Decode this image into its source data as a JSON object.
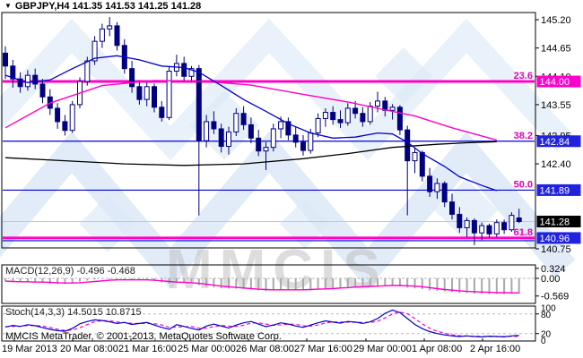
{
  "header": {
    "symbol_line": "GBPJPY,H4  141.35 141.53 141.25 141.28",
    "dropdown_icon": "triangle-down"
  },
  "footer": {
    "copyright": "MMCIS MetaTrader, © 2001-2013, MetaQuotes Software Corp."
  },
  "watermark": {
    "text": "MMCIS"
  },
  "colors": {
    "bear_candle": "#000080",
    "bull_candle": "#ffffff",
    "candle_outline": "#000080",
    "ma_fast": "#0000cc",
    "ma_mid": "#ff00c8",
    "ma_slow": "#000000",
    "level_blue": "#0000d8",
    "level_magenta": "#ff00c8",
    "badge_blue": "#2121e0",
    "badge_magenta": "#ff00c8",
    "badge_black": "#000000",
    "current_price_line": "#c8c8c8",
    "macd_histogram": "#aaaaaa",
    "macd_signal": "#ff00c8",
    "stoch_k": "#0000cc",
    "stoch_d": "#ff00c8",
    "grid_dash": "#bbbbbb",
    "watermark_blue": "#dce9f7",
    "watermark_gray": "#bdbdbd"
  },
  "price_axis": {
    "ticks": [
      {
        "label": "145.20",
        "value": 145.2
      },
      {
        "label": "144.65",
        "value": 144.65
      },
      {
        "label": "144.10",
        "value": 144.1
      },
      {
        "label": "143.55",
        "value": 143.55
      },
      {
        "label": "142.95",
        "value": 142.95
      },
      {
        "label": "142.40",
        "value": 142.4
      },
      {
        "label": "140.75",
        "value": 140.75
      }
    ]
  },
  "time_axis": {
    "labels": [
      "19 Mar 2013",
      "20 Mar 08:00",
      "21 Mar 16:00",
      "25 Mar 00:00",
      "26 Mar 08:00",
      "27 Mar 16:00",
      "29 Mar 00:00",
      "1 Apr 08:00",
      "2 Apr 16:00"
    ]
  },
  "macd_panel": {
    "label": "MACD(12,26,9) -0.496 -0.468",
    "ticks": [
      {
        "label": "0.324",
        "value": 0.324
      },
      {
        "label": "0.00",
        "value": 0.0
      },
      {
        "label": "-0.569",
        "value": -0.569
      }
    ]
  },
  "stoch_panel": {
    "label": "Stoch(14,3,3) 14.5015 10.8715",
    "ticks": [
      {
        "label": "100",
        "value": 100
      },
      {
        "label": "80",
        "value": 80
      },
      {
        "label": "20",
        "value": 20
      },
      {
        "label": "0",
        "value": 0
      }
    ]
  },
  "chart_data": {
    "type": "candlestick",
    "symbol": "GBPJPY",
    "timeframe": "H4",
    "last_ohlc": {
      "open": 141.35,
      "high": 141.53,
      "low": 141.25,
      "close": 141.28
    },
    "levels": [
      {
        "fib": "23.6",
        "label": "144.00",
        "value": 144.0,
        "badge": "#ff00c8",
        "line_color": "#ff00c8",
        "thick": true,
        "extra_blue": false
      },
      {
        "fib": "38.2",
        "label": "142.84",
        "value": 142.84,
        "badge": "#2121e0",
        "line_color": "#0000d8",
        "thick": false,
        "extra_blue": false
      },
      {
        "fib": "50.0",
        "label": "141.89",
        "value": 141.89,
        "badge": "#2121e0",
        "line_color": "#0000d8",
        "thick": false,
        "extra_blue": false
      },
      {
        "fib": "61.8",
        "label": "140.96",
        "value": 140.96,
        "badge": "#2121e0",
        "line_color": "#ff00c8",
        "thick": true,
        "extra_blue": true
      }
    ],
    "current_price": {
      "label": "141.28",
      "value": 141.28,
      "badge": "#000000",
      "line_color": "#c8c8c8"
    },
    "candles": [
      [
        144.55,
        144.68,
        144.05,
        144.3
      ],
      [
        144.3,
        144.42,
        143.88,
        144.05
      ],
      [
        144.05,
        144.18,
        143.78,
        143.9
      ],
      [
        143.9,
        144.22,
        143.82,
        144.12
      ],
      [
        144.12,
        144.25,
        143.85,
        143.95
      ],
      [
        143.95,
        144.05,
        143.58,
        143.7
      ],
      [
        143.7,
        143.85,
        143.35,
        143.48
      ],
      [
        143.48,
        143.58,
        143.08,
        143.22
      ],
      [
        143.22,
        143.35,
        142.95,
        143.05
      ],
      [
        143.05,
        143.62,
        143.0,
        143.55
      ],
      [
        143.55,
        144.08,
        143.48,
        144.0
      ],
      [
        144.0,
        144.48,
        143.92,
        144.4
      ],
      [
        144.4,
        144.88,
        144.32,
        144.78
      ],
      [
        144.78,
        145.12,
        144.65,
        145.02
      ],
      [
        145.02,
        145.25,
        144.88,
        145.08
      ],
      [
        145.08,
        145.15,
        144.6,
        144.7
      ],
      [
        144.7,
        144.82,
        144.15,
        144.25
      ],
      [
        144.25,
        144.4,
        143.78,
        143.9
      ],
      [
        143.9,
        144.02,
        143.55,
        143.65
      ],
      [
        143.65,
        143.98,
        143.52,
        143.9
      ],
      [
        143.9,
        143.96,
        143.4,
        143.5
      ],
      [
        143.5,
        143.62,
        143.22,
        143.3
      ],
      [
        143.3,
        144.28,
        143.25,
        144.2
      ],
      [
        144.2,
        144.52,
        144.1,
        144.35
      ],
      [
        144.35,
        144.48,
        144.0,
        144.1
      ],
      [
        144.1,
        144.3,
        143.98,
        144.25
      ],
      [
        144.25,
        144.32,
        141.4,
        142.85
      ],
      [
        142.85,
        143.35,
        142.72,
        143.22
      ],
      [
        143.22,
        143.42,
        142.98,
        143.08
      ],
      [
        143.08,
        143.18,
        142.62,
        142.74
      ],
      [
        142.74,
        143.12,
        142.58,
        143.02
      ],
      [
        143.02,
        143.48,
        142.94,
        143.38
      ],
      [
        143.38,
        143.52,
        143.06,
        143.16
      ],
      [
        143.16,
        143.3,
        142.8,
        142.9
      ],
      [
        142.9,
        143.06,
        142.55,
        142.65
      ],
      [
        142.65,
        142.82,
        142.28,
        142.72
      ],
      [
        142.72,
        143.18,
        142.64,
        143.08
      ],
      [
        143.08,
        143.32,
        142.9,
        143.22
      ],
      [
        143.22,
        143.3,
        142.86,
        142.96
      ],
      [
        142.96,
        143.12,
        142.72,
        142.82
      ],
      [
        142.82,
        142.96,
        142.56,
        142.66
      ],
      [
        142.66,
        143.08,
        142.6,
        143.0
      ],
      [
        143.0,
        143.38,
        142.92,
        143.28
      ],
      [
        143.28,
        143.48,
        143.12,
        143.4
      ],
      [
        143.4,
        143.52,
        143.16,
        143.26
      ],
      [
        143.26,
        143.44,
        143.1,
        143.2
      ],
      [
        143.2,
        143.58,
        143.14,
        143.48
      ],
      [
        143.48,
        143.62,
        143.28,
        143.38
      ],
      [
        143.38,
        143.5,
        143.12,
        143.22
      ],
      [
        143.22,
        143.6,
        143.16,
        143.52
      ],
      [
        143.52,
        143.8,
        143.4,
        143.62
      ],
      [
        143.62,
        143.7,
        143.32,
        143.44
      ],
      [
        143.44,
        143.56,
        143.26,
        143.5
      ],
      [
        143.5,
        143.54,
        142.96,
        143.06
      ],
      [
        143.06,
        143.14,
        141.4,
        142.46
      ],
      [
        142.46,
        142.72,
        142.22,
        142.62
      ],
      [
        142.62,
        142.66,
        142.06,
        142.16
      ],
      [
        142.16,
        142.32,
        141.76,
        141.86
      ],
      [
        141.86,
        142.12,
        141.72,
        142.02
      ],
      [
        142.02,
        142.06,
        141.56,
        141.66
      ],
      [
        141.66,
        141.82,
        141.32,
        141.42
      ],
      [
        141.42,
        141.56,
        141.06,
        141.16
      ],
      [
        141.16,
        141.36,
        140.98,
        141.3
      ],
      [
        141.3,
        141.34,
        140.82,
        141.06
      ],
      [
        141.06,
        141.26,
        140.92,
        141.2
      ],
      [
        141.2,
        141.24,
        140.96,
        141.04
      ],
      [
        141.04,
        141.32,
        140.98,
        141.26
      ],
      [
        141.26,
        141.32,
        141.04,
        141.12
      ],
      [
        141.12,
        141.46,
        141.08,
        141.4
      ],
      [
        141.35,
        141.53,
        141.25,
        141.28
      ]
    ],
    "ma_fast": [
      [
        0,
        144.12
      ],
      [
        3,
        143.98
      ],
      [
        6,
        144.03
      ],
      [
        9,
        144.25
      ],
      [
        12,
        144.45
      ],
      [
        15,
        144.5
      ],
      [
        18,
        144.42
      ],
      [
        21,
        144.3
      ],
      [
        24,
        144.27
      ],
      [
        26,
        144.18
      ],
      [
        29,
        143.92
      ],
      [
        32,
        143.65
      ],
      [
        35,
        143.42
      ],
      [
        38,
        143.18
      ],
      [
        41,
        143.0
      ],
      [
        44,
        142.9
      ],
      [
        47,
        142.92
      ],
      [
        50,
        143.0
      ],
      [
        52,
        142.98
      ],
      [
        54,
        142.82
      ],
      [
        56,
        142.6
      ],
      [
        59,
        142.35
      ],
      [
        61,
        142.15
      ],
      [
        64,
        141.98
      ],
      [
        66,
        141.88
      ]
    ],
    "ma_mid": [
      [
        0,
        143.1
      ],
      [
        6,
        143.58
      ],
      [
        13,
        143.92
      ],
      [
        20,
        144.02
      ],
      [
        27,
        144.0
      ],
      [
        33,
        143.93
      ],
      [
        40,
        143.75
      ],
      [
        46,
        143.6
      ],
      [
        50,
        143.48
      ],
      [
        55,
        143.33
      ],
      [
        60,
        143.1
      ],
      [
        63,
        142.98
      ],
      [
        66,
        142.86
      ]
    ],
    "ma_slow": [
      [
        0,
        142.52
      ],
      [
        8,
        142.46
      ],
      [
        16,
        142.4
      ],
      [
        24,
        142.37
      ],
      [
        32,
        142.4
      ],
      [
        40,
        142.5
      ],
      [
        46,
        142.6
      ],
      [
        52,
        142.72
      ],
      [
        58,
        142.78
      ],
      [
        62,
        142.81
      ],
      [
        66,
        142.83
      ]
    ],
    "macd": {
      "histogram": [
        -0.1,
        -0.12,
        -0.13,
        -0.12,
        -0.13,
        -0.15,
        -0.17,
        -0.18,
        -0.18,
        -0.15,
        -0.11,
        -0.07,
        -0.04,
        -0.02,
        -0.02,
        -0.04,
        -0.03,
        -0.06,
        -0.05,
        -0.04,
        -0.08,
        -0.13,
        -0.17,
        -0.14,
        -0.12,
        -0.12,
        -0.22,
        -0.26,
        -0.29,
        -0.32,
        -0.33,
        -0.33,
        -0.34,
        -0.36,
        -0.39,
        -0.41,
        -0.39,
        -0.37,
        -0.37,
        -0.38,
        -0.39,
        -0.38,
        -0.36,
        -0.34,
        -0.33,
        -0.33,
        -0.31,
        -0.29,
        -0.28,
        -0.26,
        -0.24,
        -0.24,
        -0.23,
        -0.26,
        -0.3,
        -0.32,
        -0.35,
        -0.39,
        -0.4,
        -0.42,
        -0.44,
        -0.47,
        -0.47,
        -0.49,
        -0.5,
        -0.51,
        -0.5,
        -0.51,
        -0.5,
        -0.496
      ],
      "signal": [
        -0.09,
        -0.1,
        -0.11,
        -0.11,
        -0.12,
        -0.12,
        -0.13,
        -0.14,
        -0.15,
        -0.15,
        -0.14,
        -0.12,
        -0.1,
        -0.08,
        -0.06,
        -0.05,
        -0.05,
        -0.05,
        -0.05,
        -0.05,
        -0.06,
        -0.08,
        -0.1,
        -0.12,
        -0.13,
        -0.14,
        -0.16,
        -0.19,
        -0.22,
        -0.25,
        -0.27,
        -0.29,
        -0.31,
        -0.33,
        -0.35,
        -0.36,
        -0.37,
        -0.37,
        -0.37,
        -0.37,
        -0.37,
        -0.36,
        -0.35,
        -0.34,
        -0.33,
        -0.31,
        -0.3,
        -0.28,
        -0.27,
        -0.26,
        -0.25,
        -0.24,
        -0.23,
        -0.23,
        -0.24,
        -0.25,
        -0.27,
        -0.3,
        -0.33,
        -0.36,
        -0.38,
        -0.4,
        -0.42,
        -0.43,
        -0.44,
        -0.45,
        -0.46,
        -0.46,
        -0.47,
        -0.468
      ]
    },
    "stoch": {
      "k": [
        40,
        45,
        42,
        47,
        44,
        38,
        33,
        29,
        27,
        36,
        50,
        57,
        62,
        60,
        56,
        51,
        54,
        48,
        51,
        54,
        46,
        39,
        33,
        47,
        42,
        36,
        31,
        43,
        49,
        43,
        37,
        46,
        53,
        57,
        49,
        41,
        46,
        53,
        49,
        43,
        39,
        46,
        53,
        59,
        55,
        52,
        57,
        55,
        51,
        56,
        66,
        82,
        92,
        84,
        66,
        48,
        35,
        26,
        20,
        16,
        13,
        11,
        13,
        11,
        10,
        12,
        11,
        10,
        13,
        14.5
      ],
      "d": [
        41,
        42.3,
        42.3,
        44.7,
        44.3,
        43.0,
        38.3,
        33.3,
        29.7,
        30.7,
        37.7,
        47.7,
        56.3,
        59.7,
        59.3,
        55.7,
        53.7,
        51.0,
        51.0,
        51.0,
        50.3,
        46.3,
        39.3,
        39.7,
        40.7,
        41.7,
        36.3,
        36.7,
        41.0,
        45.0,
        43.0,
        42.0,
        45.3,
        52.0,
        53.0,
        49.0,
        45.3,
        46.7,
        49.3,
        48.3,
        43.7,
        42.7,
        46.0,
        52.7,
        55.7,
        55.3,
        54.7,
        54.7,
        54.3,
        54.0,
        57.7,
        68.0,
        80.0,
        86.0,
        80.7,
        66.0,
        49.7,
        36.3,
        27.0,
        20.7,
        16.3,
        13.3,
        12.3,
        11.7,
        11.3,
        11.0,
        11.0,
        11.0,
        11.3,
        10.87
      ]
    }
  }
}
